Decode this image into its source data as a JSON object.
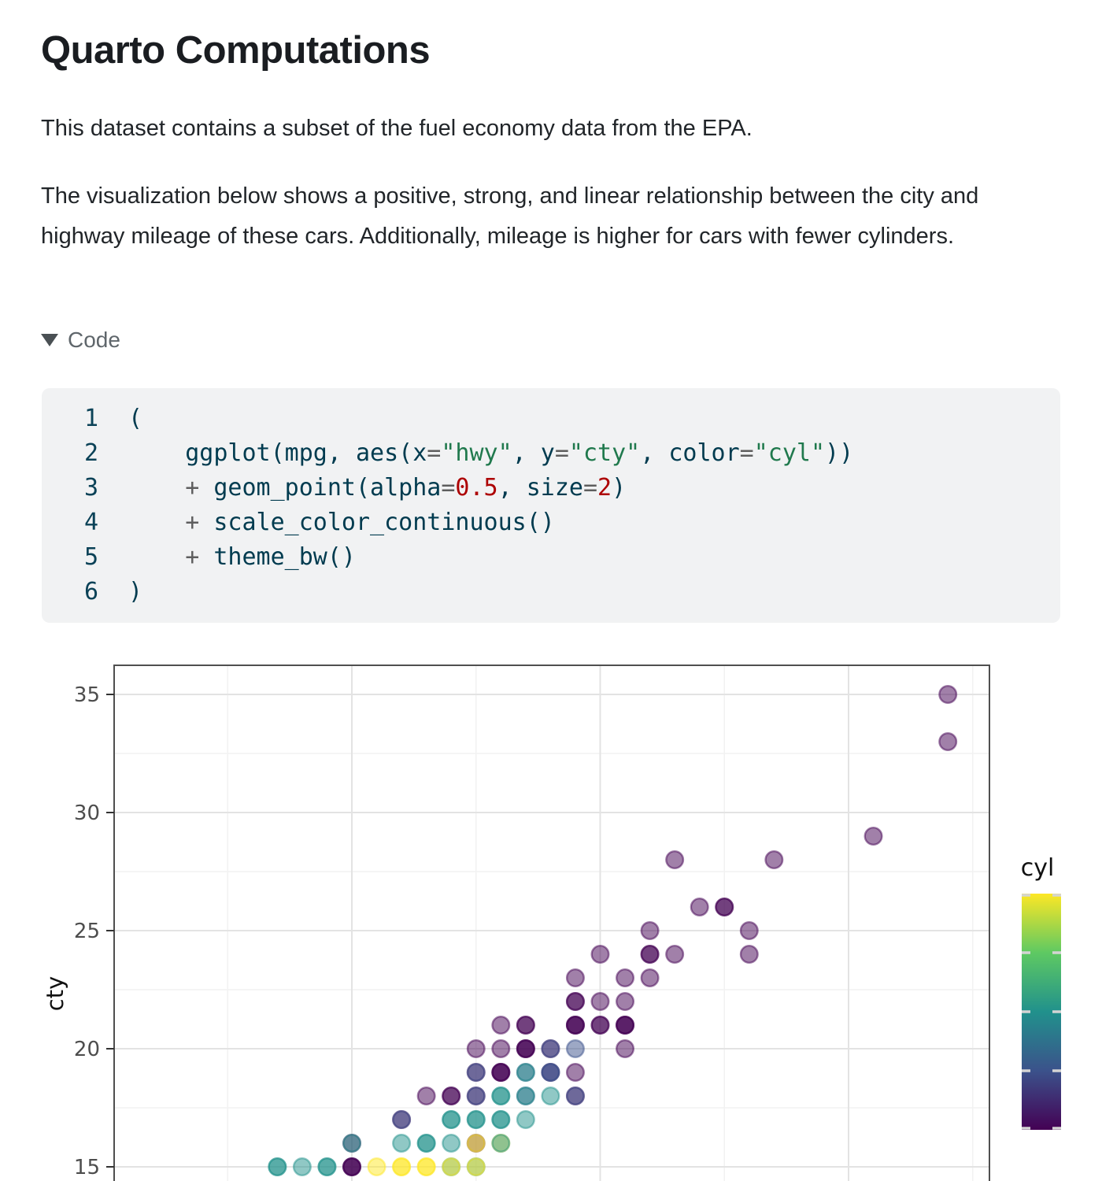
{
  "document": {
    "title": "Quarto Computations",
    "paragraphs": [
      "This dataset contains a subset of the fuel economy data from the EPA.",
      "The visualization below shows a positive, strong, and linear relationship between the city and highway mileage of these cars. Additionally, mileage is higher for cars with fewer cylinders."
    ],
    "code_disclosure": {
      "label": "Code",
      "expanded": true
    }
  },
  "code_block": {
    "colors": {
      "base": "#003B4F",
      "string": "#20794D",
      "number": "#AD0000",
      "operator": "#5E5E5E"
    },
    "lines": [
      {
        "num": "1",
        "segments": [
          [
            "base",
            "("
          ]
        ]
      },
      {
        "num": "2",
        "segments": [
          [
            "base",
            "    ggplot(mpg, aes(x"
          ],
          [
            "operator",
            "="
          ],
          [
            "string",
            "\"hwy\""
          ],
          [
            "base",
            ", y"
          ],
          [
            "operator",
            "="
          ],
          [
            "string",
            "\"cty\""
          ],
          [
            "base",
            ", color"
          ],
          [
            "operator",
            "="
          ],
          [
            "string",
            "\"cyl\""
          ],
          [
            "base",
            "))"
          ]
        ]
      },
      {
        "num": "3",
        "segments": [
          [
            "base",
            "    "
          ],
          [
            "operator",
            "+"
          ],
          [
            "base",
            " geom_point(alpha"
          ],
          [
            "operator",
            "="
          ],
          [
            "number",
            "0.5"
          ],
          [
            "base",
            ", size"
          ],
          [
            "operator",
            "="
          ],
          [
            "number",
            "2"
          ],
          [
            "base",
            ")"
          ]
        ]
      },
      {
        "num": "4",
        "segments": [
          [
            "base",
            "    "
          ],
          [
            "operator",
            "+"
          ],
          [
            "base",
            " scale_color_continuous()"
          ]
        ]
      },
      {
        "num": "5",
        "segments": [
          [
            "base",
            "    "
          ],
          [
            "operator",
            "+"
          ],
          [
            "base",
            " theme_bw()"
          ]
        ]
      },
      {
        "num": "6",
        "segments": [
          [
            "base",
            ")"
          ]
        ]
      }
    ]
  },
  "chart_data": {
    "type": "scatter",
    "ylabel": "cty",
    "y_ticks": [
      35,
      30,
      25,
      20,
      15
    ],
    "y_minor_gridlines": [
      32.5,
      27.5,
      22.5,
      17.5
    ],
    "x_major_gridlines": [
      20,
      30,
      40
    ],
    "x_minor_gridlines": [
      15,
      25,
      35,
      45
    ],
    "x_range_visible": [
      10.4,
      45.7
    ],
    "y_range_visible": [
      14.4,
      36.2
    ],
    "point_alpha": 0.5,
    "cyl_colors": {
      "4": "#440154",
      "5": "#3b528b",
      "6": "#21918c",
      "7": "#5ec962",
      "8": "#fde725"
    },
    "legend": {
      "title": "cyl",
      "type": "colorbar",
      "scale": "viridis",
      "domain": [
        4,
        8
      ],
      "tick_values": [
        4,
        5,
        6,
        7,
        8
      ],
      "gradient_top_to_bottom": [
        "#fde725",
        "#5ec962",
        "#21918c",
        "#3b528b",
        "#440154"
      ]
    },
    "points": [
      [
        44,
        35,
        [
          4
        ]
      ],
      [
        44,
        33,
        [
          4
        ]
      ],
      [
        41,
        29,
        [
          4
        ]
      ],
      [
        33,
        28,
        [
          4
        ]
      ],
      [
        37,
        28,
        [
          4
        ]
      ],
      [
        34,
        26,
        [
          4
        ]
      ],
      [
        35,
        26,
        [
          4,
          4
        ]
      ],
      [
        32,
        25,
        [
          4
        ]
      ],
      [
        36,
        25,
        [
          4
        ]
      ],
      [
        30,
        24,
        [
          4
        ]
      ],
      [
        32,
        24,
        [
          4,
          4
        ]
      ],
      [
        33,
        24,
        [
          4
        ]
      ],
      [
        36,
        24,
        [
          4
        ]
      ],
      [
        29,
        23,
        [
          4
        ]
      ],
      [
        31,
        23,
        [
          4
        ]
      ],
      [
        32,
        23,
        [
          4
        ]
      ],
      [
        29,
        22,
        [
          4,
          4
        ]
      ],
      [
        30,
        22,
        [
          4
        ]
      ],
      [
        31,
        22,
        [
          4
        ]
      ],
      [
        26,
        21,
        [
          4
        ]
      ],
      [
        27,
        21,
        [
          4,
          4
        ]
      ],
      [
        29,
        21,
        [
          4,
          4,
          4
        ]
      ],
      [
        30,
        21,
        [
          4,
          4
        ]
      ],
      [
        31,
        21,
        [
          4,
          4,
          4
        ]
      ],
      [
        25,
        20,
        [
          4
        ]
      ],
      [
        26,
        20,
        [
          4
        ]
      ],
      [
        27,
        20,
        [
          4,
          4,
          4
        ]
      ],
      [
        28,
        20,
        [
          4,
          5
        ]
      ],
      [
        29,
        20,
        [
          5
        ]
      ],
      [
        31,
        20,
        [
          4
        ]
      ],
      [
        25,
        19,
        [
          4,
          5
        ]
      ],
      [
        26,
        19,
        [
          4,
          4,
          4
        ]
      ],
      [
        27,
        19,
        [
          5,
          6
        ]
      ],
      [
        28,
        19,
        [
          4,
          5,
          5
        ]
      ],
      [
        29,
        19,
        [
          4
        ]
      ],
      [
        23,
        18,
        [
          4
        ]
      ],
      [
        24,
        18,
        [
          4,
          4
        ]
      ],
      [
        25,
        18,
        [
          4,
          5
        ]
      ],
      [
        26,
        18,
        [
          6,
          6
        ]
      ],
      [
        27,
        18,
        [
          5,
          6
        ]
      ],
      [
        28,
        18,
        [
          6
        ]
      ],
      [
        29,
        18,
        [
          4,
          5
        ]
      ],
      [
        22,
        17,
        [
          4,
          5
        ]
      ],
      [
        24,
        17,
        [
          6,
          6
        ]
      ],
      [
        25,
        17,
        [
          6,
          6
        ]
      ],
      [
        26,
        17,
        [
          6,
          6
        ]
      ],
      [
        27,
        17,
        [
          6
        ]
      ],
      [
        20,
        16,
        [
          4,
          6
        ]
      ],
      [
        22,
        16,
        [
          6
        ]
      ],
      [
        23,
        16,
        [
          6,
          6
        ]
      ],
      [
        24,
        16,
        [
          6
        ]
      ],
      [
        25,
        16,
        [
          4,
          8
        ]
      ],
      [
        26,
        16,
        [
          8,
          6
        ]
      ],
      [
        17,
        15,
        [
          6,
          6
        ]
      ],
      [
        18,
        15,
        [
          6
        ]
      ],
      [
        19,
        15,
        [
          6,
          6
        ]
      ],
      [
        20,
        15,
        [
          4,
          4,
          4
        ]
      ],
      [
        21,
        15,
        [
          8
        ]
      ],
      [
        22,
        15,
        [
          8,
          8
        ]
      ],
      [
        23,
        15,
        [
          8,
          8
        ]
      ],
      [
        24,
        15,
        [
          6,
          8
        ]
      ],
      [
        25,
        15,
        [
          6,
          8
        ]
      ]
    ]
  }
}
